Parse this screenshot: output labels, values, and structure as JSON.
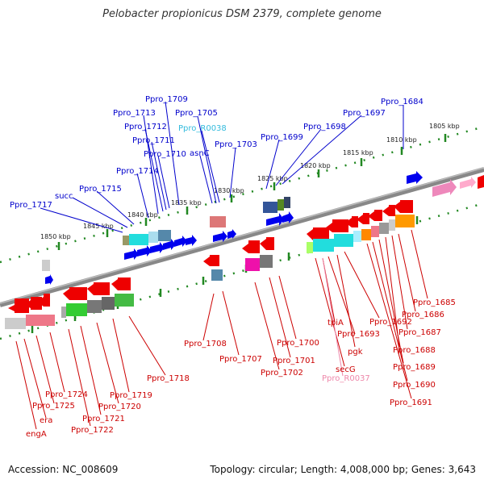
{
  "title": "Pelobacter propionicus DSM 2379, complete genome",
  "footer": {
    "accession": "Accession: NC_008609",
    "summary": "Topology: circular; Length: 4,008,000 bp; Genes: 3,643"
  },
  "colors": {
    "forward_label": "#0000cc",
    "reverse_label": "#cc0000",
    "rna_forward_label": "#33bbdd",
    "rna_reverse_label": "#ee88aa",
    "forward_gene": "#0000ee",
    "reverse_gene": "#ee0000",
    "backbone": "#777777",
    "ticks": "#228822"
  },
  "ticks": [
    "1850 kbp",
    "1845 kbp",
    "1840 kbp",
    "1835 kbp",
    "1830 kbp",
    "1825 kbp",
    "1820 kbp",
    "1815 kbp",
    "1810 kbp",
    "1805 kbp"
  ],
  "forward_labels": [
    "Ppro_1717",
    "succ",
    "Ppro_1715",
    "Ppro_1714",
    "Ppro_1713",
    "Ppro_1712",
    "Ppro_1711",
    "Ppro_1710",
    "Ppro_1709",
    "Ppro_1705",
    "Ppro_R0038",
    "asnC",
    "Ppro_1703",
    "Ppro_1699",
    "Ppro_1698",
    "Ppro_1697",
    "Ppro_1684"
  ],
  "reverse_labels": [
    "engA",
    "era",
    "Ppro_1725",
    "Ppro_1724",
    "Ppro_1722",
    "Ppro_1721",
    "Ppro_1720",
    "Ppro_1719",
    "Ppro_1718",
    "Ppro_1708",
    "Ppro_1707",
    "Ppro_1702",
    "Ppro_1701",
    "Ppro_1700",
    "secG",
    "Ppro_R0037",
    "tpiA",
    "Ppro_1693",
    "Ppro_1692",
    "pgk",
    "Ppro_1691",
    "Ppro_1690",
    "Ppro_1689",
    "Ppro_1688",
    "Ppro_1687",
    "Ppro_1686",
    "Ppro_1685"
  ]
}
